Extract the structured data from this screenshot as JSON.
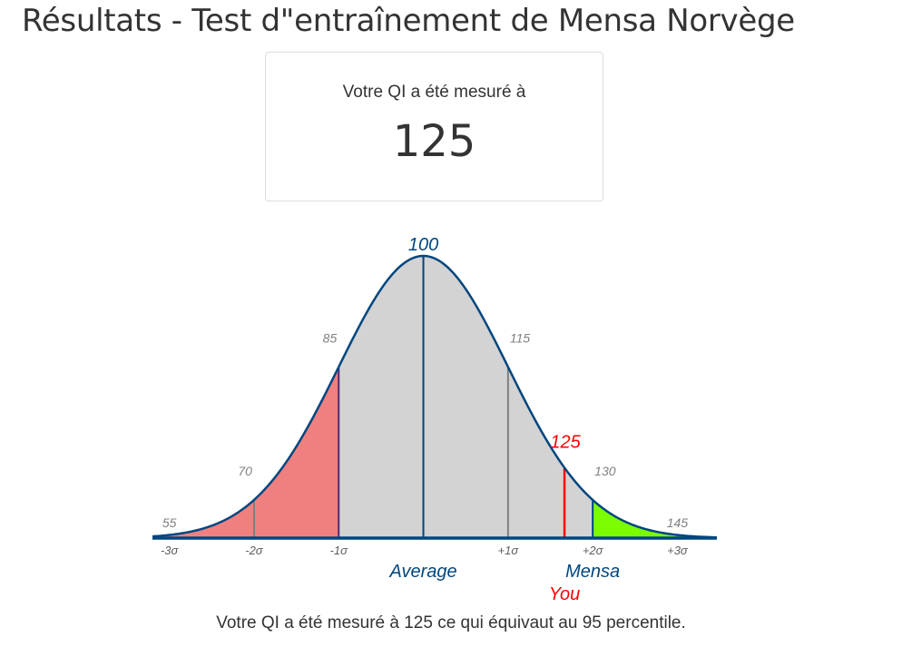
{
  "page": {
    "title": "Résultats - Test d\"entraînement de Mensa Norvège"
  },
  "score_card": {
    "label": "Votre QI a été mesuré à",
    "value": "125"
  },
  "summary": {
    "text": "Votre QI a été mesuré à 125 ce qui équivaut au 95 percentile."
  },
  "colors": {
    "curve": "#00467f",
    "fill_mid": "#d3d3d3",
    "fill_low": "#f08080",
    "fill_mensa": "#7cfc00",
    "you": "#ff0000",
    "tick_text": "#808080"
  },
  "chart_data": {
    "type": "area",
    "mean": 100,
    "sd": 15,
    "x_range": [
      52,
      152
    ],
    "iq_labels": [
      {
        "iq": 55,
        "label": "55"
      },
      {
        "iq": 70,
        "label": "70"
      },
      {
        "iq": 85,
        "label": "85"
      },
      {
        "iq": 100,
        "label": "100"
      },
      {
        "iq": 115,
        "label": "115"
      },
      {
        "iq": 130,
        "label": "130"
      },
      {
        "iq": 145,
        "label": "145"
      }
    ],
    "sigma_labels": [
      {
        "iq": 55,
        "label": "-3σ"
      },
      {
        "iq": 70,
        "label": "-2σ"
      },
      {
        "iq": 85,
        "label": "-1σ"
      },
      {
        "iq": 115,
        "label": "+1σ"
      },
      {
        "iq": 130,
        "label": "+2σ"
      },
      {
        "iq": 145,
        "label": "+3σ"
      }
    ],
    "region_low": [
      52,
      85
    ],
    "region_mensa": [
      130,
      152
    ],
    "average": {
      "iq": 100,
      "label": "Average"
    },
    "mensa": {
      "iq": 130,
      "label": "Mensa"
    },
    "you": {
      "iq": 125,
      "label": "You",
      "value_label": "125"
    }
  }
}
